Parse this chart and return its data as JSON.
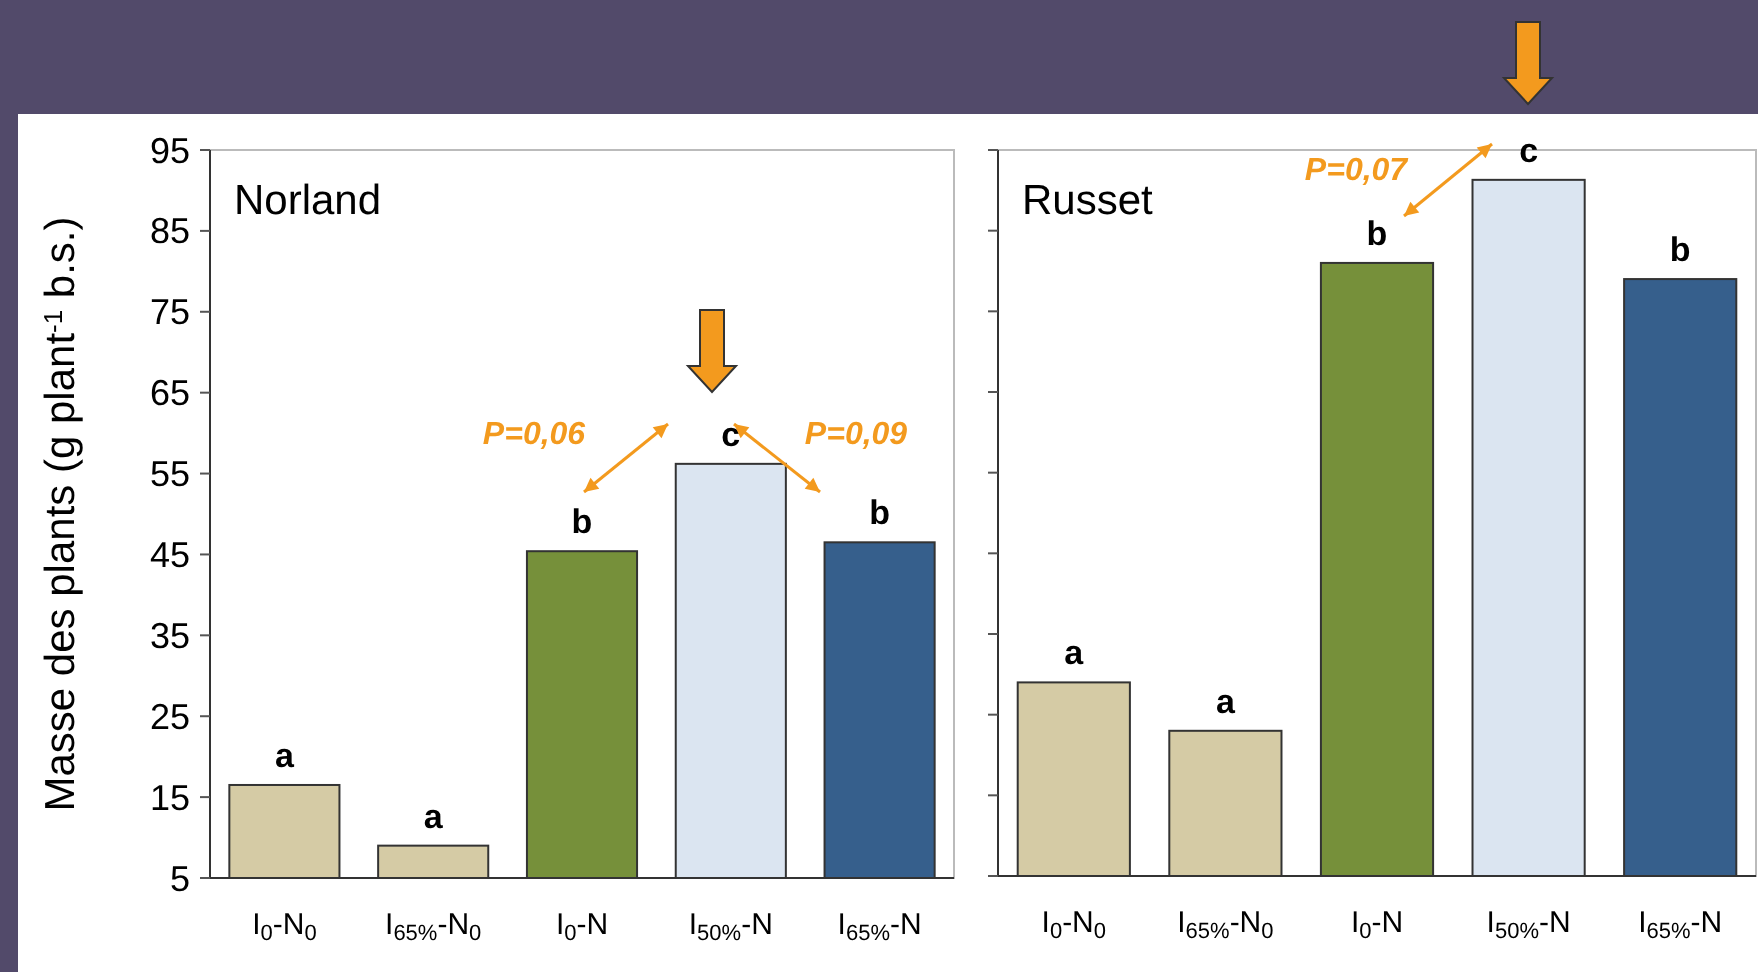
{
  "chart_data": [
    {
      "type": "bar",
      "title": "Norland",
      "ylabel": "Masse des plants (g plant$^{-1}$ b.s.)",
      "categories": [
        "I$_{0}$-N$_{0}$",
        "I$_{65%}$-N$_{0}$",
        "I$_{0}$-N",
        "I$_{50%}$-N",
        "I$_{65%}$-N"
      ],
      "values": [
        16.5,
        9,
        45.4,
        56.2,
        46.5
      ],
      "colors": [
        "#d5cba5",
        "#d5cba5",
        "#76903a",
        "#dbe5f1",
        "#365f8c"
      ],
      "ylim": [
        5,
        95
      ],
      "yticks": [
        5,
        15,
        25,
        35,
        45,
        55,
        65,
        75,
        85,
        95
      ],
      "grid": false,
      "annotations": [
        {
          "text": "a",
          "x": "I$_{0}$-N$_{0}$",
          "y": 16.5
        },
        {
          "text": "a",
          "x": "I$_{65%}$-N$_{0}$",
          "y": 9
        },
        {
          "text": "b",
          "x": "I$_{0}$-N",
          "y": 45.4
        },
        {
          "text": "c",
          "x": "I$_{50%}$-N",
          "y": 56.2
        },
        {
          "text": "b",
          "x": "I$_{65%}$-N",
          "y": 46.5
        },
        "P=0,06",
        "P=0,09"
      ]
    },
    {
      "type": "bar",
      "title": "Russet",
      "categories": [
        "I$_{0}$-N$_{0}$",
        "I$_{65%}$-N$_{0}$",
        "I$_{0}$-N",
        "I$_{50%}$-N",
        "I$_{65%}$-N"
      ],
      "values": [
        29,
        23,
        81,
        91.3,
        79
      ],
      "colors": [
        "#d5cba5",
        "#d5cba5",
        "#76903a",
        "#dbe5f1",
        "#365f8c"
      ],
      "ylim": [
        5,
        95
      ],
      "yticks": [
        5,
        15,
        25,
        35,
        45,
        55,
        65,
        75,
        85,
        95
      ],
      "grid": false,
      "tick_labels": "x",
      "annotations": [
        {
          "text": "a",
          "x": "I$_{0}$-N$_{0}$",
          "y": 29
        },
        {
          "text": "a",
          "x": "I$_{65%}$-N$_{0}$",
          "y": 23
        },
        {
          "text": "b",
          "x": "I$_{0}$-N",
          "y": 81
        },
        {
          "text": "c",
          "x": "I$_{50%}$-N",
          "y": 91.3
        },
        {
          "text": "b",
          "x": "I$_{65%}$-N",
          "y": 79
        },
        "P=0,07"
      ]
    }
  ]
}
